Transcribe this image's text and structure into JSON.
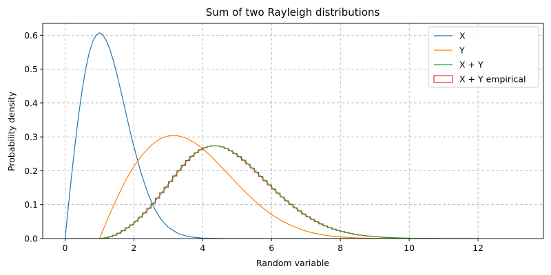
{
  "chart_data": {
    "type": "line",
    "title": "Sum of two Rayleigh distributions",
    "xlabel": "Random variable",
    "ylabel": "Probability density",
    "xlim": [
      -0.65,
      13.9
    ],
    "ylim": [
      0,
      0.635
    ],
    "xticks": [
      0,
      2,
      4,
      6,
      8,
      10,
      12
    ],
    "yticks": [
      0.0,
      0.1,
      0.2,
      0.3,
      0.4,
      0.5,
      0.6
    ],
    "xtick_labels": [
      "0",
      "2",
      "4",
      "6",
      "8",
      "10",
      "12"
    ],
    "ytick_labels": [
      "0.0",
      "0.1",
      "0.2",
      "0.3",
      "0.4",
      "0.5",
      "0.6"
    ],
    "grid": true,
    "legend_position": "top-right",
    "series": [
      {
        "name": "X",
        "kind": "line",
        "color": "#1f77b4",
        "x": [
          0,
          0.1,
          0.2,
          0.3,
          0.4,
          0.5,
          0.6,
          0.7,
          0.8,
          0.9,
          1.0,
          1.1,
          1.2,
          1.3,
          1.4,
          1.5,
          1.6,
          1.7,
          1.8,
          1.9,
          2.0,
          2.2,
          2.4,
          2.6,
          2.8,
          3.0,
          3.3,
          3.6,
          4.0,
          4.5,
          5.0,
          6.0,
          8.0,
          12.0
        ],
        "y": [
          0,
          0.0995,
          0.196,
          0.287,
          0.369,
          0.441,
          0.501,
          0.548,
          0.581,
          0.6,
          0.607,
          0.601,
          0.584,
          0.559,
          0.526,
          0.487,
          0.445,
          0.401,
          0.356,
          0.312,
          0.271,
          0.196,
          0.135,
          0.088,
          0.055,
          0.033,
          0.014,
          0.0055,
          0.0013,
          0.0002,
          2e-05,
          0,
          0,
          0
        ]
      },
      {
        "name": "Y",
        "kind": "line",
        "color": "#ff7f0e",
        "x": [
          1.0,
          1.25,
          1.5,
          1.75,
          2.0,
          2.25,
          2.5,
          2.75,
          3.0,
          3.25,
          3.5,
          3.75,
          4.0,
          4.25,
          4.5,
          4.75,
          5.0,
          5.25,
          5.5,
          5.75,
          6.0,
          6.25,
          6.5,
          6.75,
          7.0,
          7.25,
          7.5,
          7.75,
          8.0,
          8.5,
          9.0,
          9.5,
          10.0,
          10.5,
          11.0,
          12.0
        ],
        "y": [
          0,
          0.061,
          0.118,
          0.17,
          0.213,
          0.248,
          0.275,
          0.294,
          0.303,
          0.304,
          0.297,
          0.284,
          0.265,
          0.242,
          0.216,
          0.189,
          0.162,
          0.136,
          0.112,
          0.09,
          0.071,
          0.055,
          0.042,
          0.031,
          0.022,
          0.0155,
          0.0106,
          0.0071,
          0.0046,
          0.0018,
          0.0007,
          0.0002,
          6e-05,
          2e-05,
          0,
          0
        ]
      },
      {
        "name": "X + Y",
        "kind": "line",
        "color": "#2ca02c",
        "x": [
          0,
          0.5,
          1.0,
          1.25,
          1.5,
          1.75,
          2.0,
          2.25,
          2.5,
          2.75,
          3.0,
          3.25,
          3.5,
          3.75,
          4.0,
          4.25,
          4.5,
          4.75,
          5.0,
          5.25,
          5.5,
          5.75,
          6.0,
          6.25,
          6.5,
          6.75,
          7.0,
          7.25,
          7.5,
          7.75,
          8.0,
          8.5,
          9.0,
          9.5,
          10.0,
          10.5,
          11.0,
          12.0
        ],
        "y": [
          0,
          0,
          0,
          0.003,
          0.012,
          0.027,
          0.045,
          0.069,
          0.096,
          0.127,
          0.16,
          0.193,
          0.224,
          0.249,
          0.266,
          0.274,
          0.273,
          0.263,
          0.247,
          0.226,
          0.202,
          0.177,
          0.152,
          0.128,
          0.106,
          0.086,
          0.068,
          0.053,
          0.04,
          0.03,
          0.022,
          0.011,
          0.0055,
          0.0025,
          0.001,
          0.0004,
          0.0001,
          0
        ]
      },
      {
        "name": "X + Y empirical",
        "kind": "step-histogram",
        "color": "#d62728",
        "bin_width": 0.125,
        "bin_start": 1.0,
        "bin_end": 11.0
      }
    ]
  }
}
